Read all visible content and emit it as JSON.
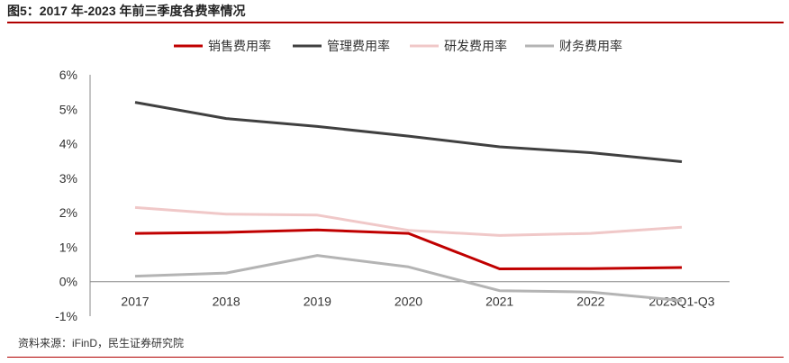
{
  "title": "图5：2017 年-2023 年前三季度各费率情况",
  "source": "资料来源：iFinD，民生证券研究院",
  "chart_data": {
    "type": "line",
    "title": "图5：2017 年-2023 年前三季度各费率情况",
    "categories": [
      "2017",
      "2018",
      "2019",
      "2020",
      "2021",
      "2022",
      "2023Q1-Q3"
    ],
    "ylim": [
      -1,
      6
    ],
    "yticks": [
      "-1%",
      "0%",
      "1%",
      "2%",
      "3%",
      "4%",
      "5%",
      "6%"
    ],
    "ytick_values": [
      -1,
      0,
      1,
      2,
      3,
      4,
      5,
      6
    ],
    "grid": false,
    "legend_position": "top",
    "series": [
      {
        "name": "销售费用率",
        "color": "#c00000",
        "values": [
          1.4,
          1.43,
          1.5,
          1.4,
          0.37,
          0.38,
          0.41
        ]
      },
      {
        "name": "管理费用率",
        "color": "#404040",
        "values": [
          5.2,
          4.73,
          4.5,
          4.22,
          3.91,
          3.74,
          3.48
        ]
      },
      {
        "name": "研发费用率",
        "color": "#f0c8c8",
        "values": [
          2.15,
          1.96,
          1.93,
          1.49,
          1.34,
          1.4,
          1.58
        ]
      },
      {
        "name": "财务费用率",
        "color": "#b4b4b4",
        "values": [
          0.16,
          0.25,
          0.76,
          0.43,
          -0.26,
          -0.3,
          -0.55
        ]
      }
    ]
  }
}
